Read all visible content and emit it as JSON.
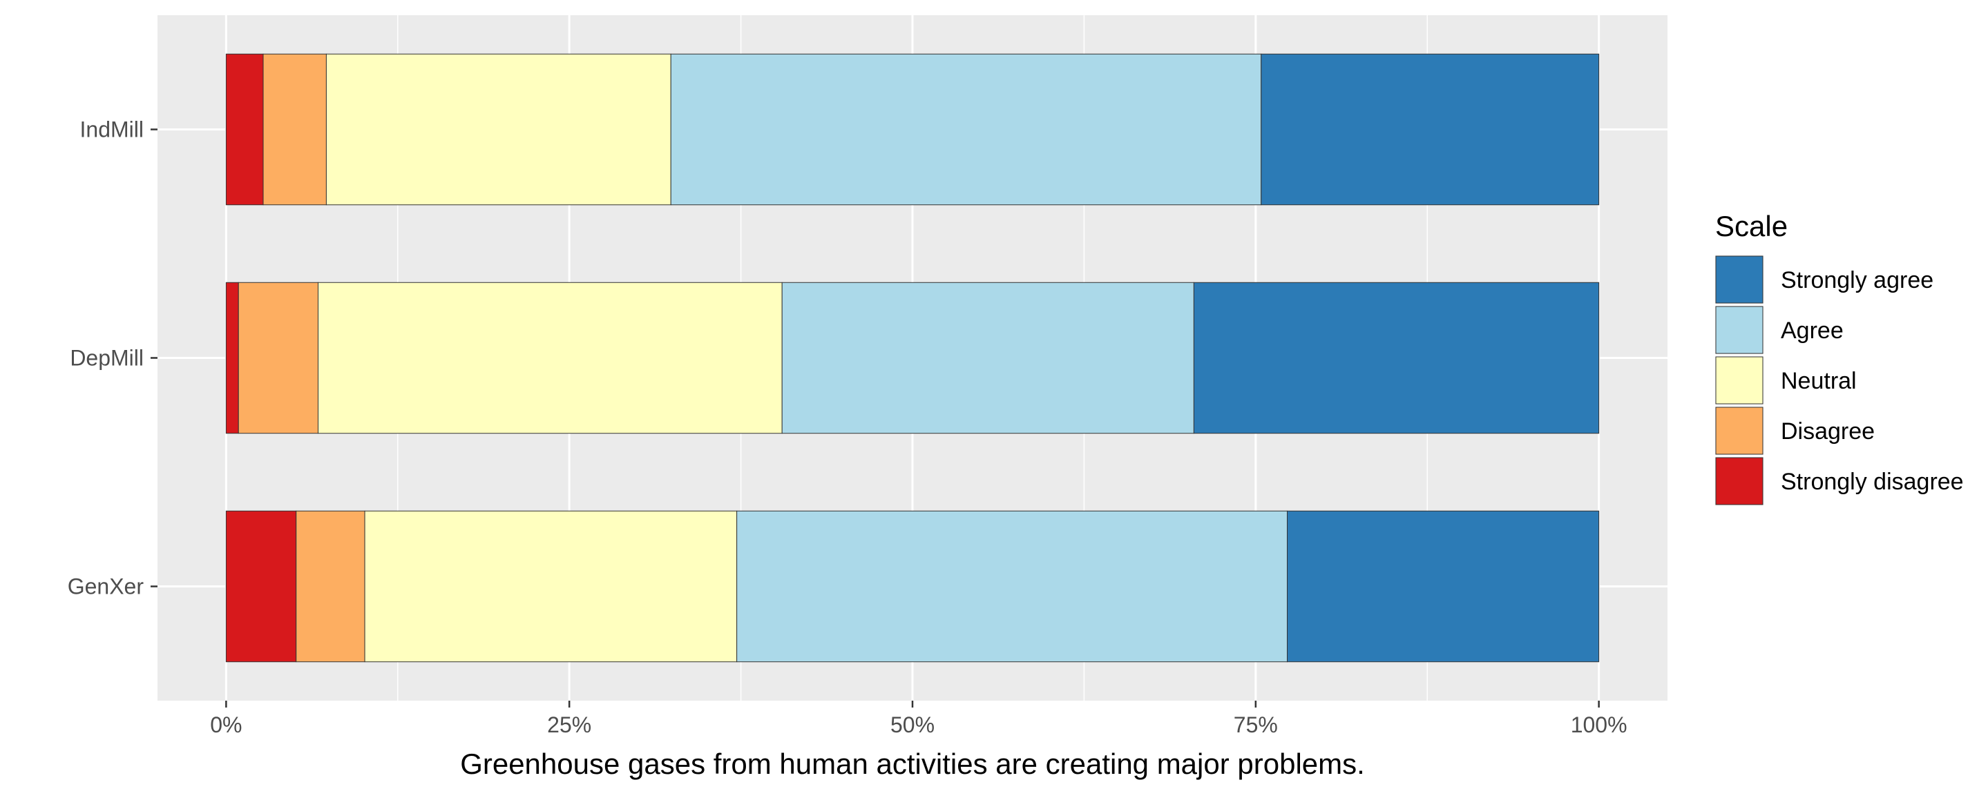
{
  "chart_data": {
    "type": "bar",
    "orientation": "horizontal",
    "stacked": "percent",
    "xlabel": "Greenhouse gases from human activities are creating major problems.",
    "ylabel": "",
    "xlim": [
      -5,
      105
    ],
    "x_ticks": [
      0,
      25,
      50,
      75,
      100
    ],
    "x_tick_labels": [
      "0%",
      "25%",
      "50%",
      "75%",
      "100%"
    ],
    "categories": [
      "IndMill",
      "DepMill",
      "GenXer"
    ],
    "series": [
      {
        "name": "Strongly disagree",
        "color": "#d7191c",
        "values": [
          2.7,
          0.9,
          5.1
        ]
      },
      {
        "name": "Disagree",
        "color": "#fdae61",
        "values": [
          4.6,
          5.8,
          5.0
        ]
      },
      {
        "name": "Neutral",
        "color": "#ffffbf",
        "values": [
          25.1,
          33.8,
          27.1
        ]
      },
      {
        "name": "Agree",
        "color": "#abd9e9",
        "values": [
          43.0,
          30.0,
          40.1
        ]
      },
      {
        "name": "Strongly agree",
        "color": "#2c7bb6",
        "values": [
          24.6,
          29.5,
          22.7
        ]
      }
    ],
    "legend": {
      "title": "Scale",
      "position": "right",
      "order": [
        "Strongly agree",
        "Agree",
        "Neutral",
        "Disagree",
        "Strongly disagree"
      ]
    },
    "grid": true,
    "panel_background": "#ebebeb"
  }
}
